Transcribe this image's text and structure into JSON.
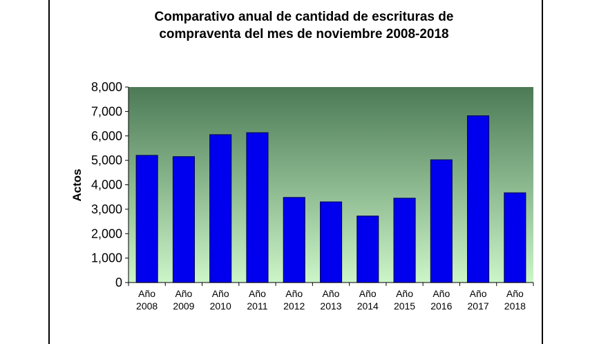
{
  "chart_data": {
    "type": "bar",
    "title_line1": "Comparativo  anual de cantidad de escrituras de",
    "title_line2": "compraventa del mes de noviembre 2008-2018",
    "ylabel": "Actos",
    "xlabel": "",
    "ylim": [
      0,
      8000
    ],
    "yticks": [
      "0",
      "1,000",
      "2,000",
      "3,000",
      "4,000",
      "5,000",
      "6,000",
      "7,000",
      "8,000"
    ],
    "categories": [
      [
        "Año",
        "2008"
      ],
      [
        "Año",
        "2009"
      ],
      [
        "Año",
        "2010"
      ],
      [
        "Año",
        "2011"
      ],
      [
        "Año",
        "2012"
      ],
      [
        "Año",
        "2013"
      ],
      [
        "Año",
        "2014"
      ],
      [
        "Año",
        "2015"
      ],
      [
        "Año",
        "2016"
      ],
      [
        "Año",
        "2017"
      ],
      [
        "Año",
        "2018"
      ]
    ],
    "values": [
      5200,
      5150,
      6050,
      6130,
      3480,
      3300,
      2720,
      3450,
      5020,
      6820,
      3670
    ],
    "legend": "none",
    "grid": false
  },
  "colors": {
    "bar": "#0000ee",
    "bar_edge": "#000066",
    "plot_top": "#4b7a55",
    "plot_bottom": "#ccf5c8"
  }
}
